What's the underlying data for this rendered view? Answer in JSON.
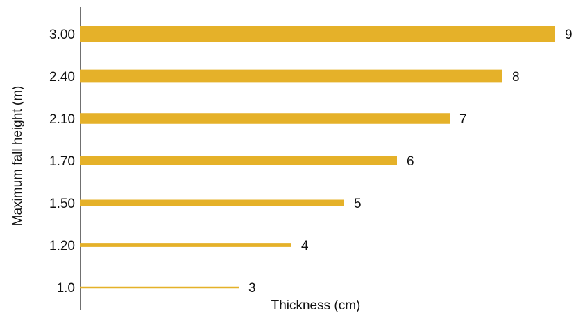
{
  "chart_data": {
    "type": "bar",
    "orientation": "horizontal",
    "title": "",
    "xlabel": "Thickness (cm)",
    "ylabel": "Maximum fall height (m)",
    "categories": [
      "3.00",
      "2.40",
      "2.10",
      "1.70",
      "1.50",
      "1.20",
      "1.0"
    ],
    "values": [
      9,
      8,
      7,
      6,
      5,
      4,
      3
    ],
    "data_labels": [
      "9",
      "8",
      "7",
      "6",
      "5",
      "4",
      "3"
    ],
    "xlim": [
      0,
      9
    ],
    "grid": false,
    "legend": "none",
    "bar_color": "#E5B129",
    "bar_thickness_encodes_value": true
  }
}
